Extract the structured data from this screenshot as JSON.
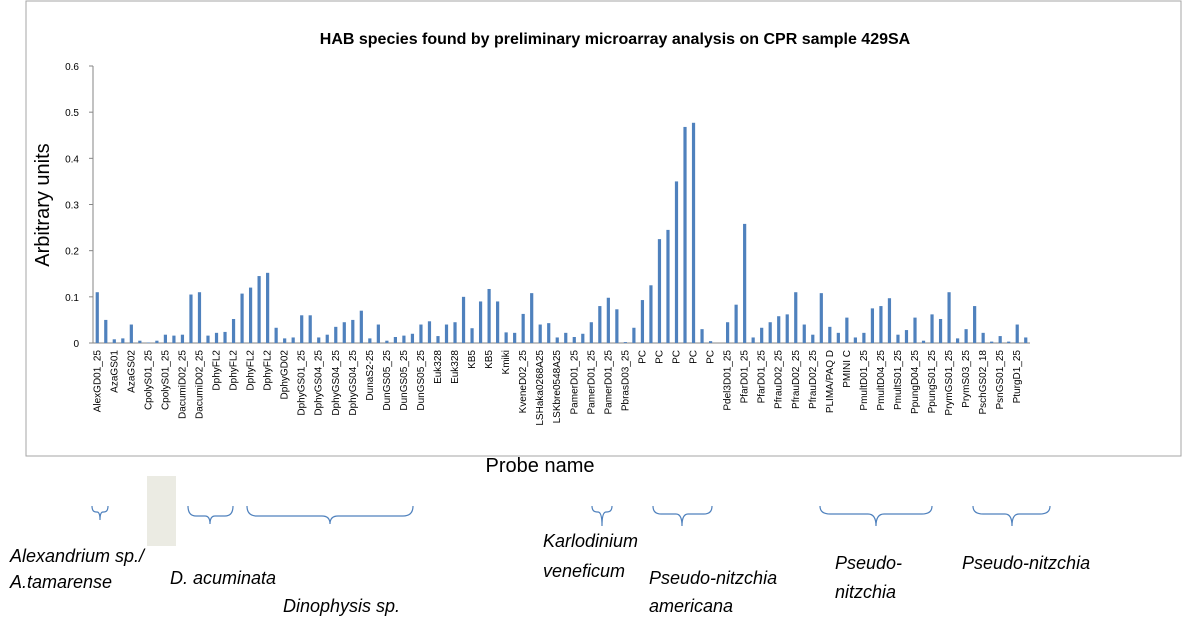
{
  "chart_data": {
    "type": "bar",
    "title": "HAB species found by preliminary microarray analysis on CPR sample 429SA",
    "x_label": "Probe name",
    "y_label": "Arbitrary units",
    "color": "#4f81bd",
    "grid": false,
    "ylim": [
      0,
      0.6
    ],
    "yticks": [
      0,
      0.1,
      0.2,
      0.3,
      0.4,
      0.5,
      0.6
    ],
    "categories": [
      "AlexGD01_25",
      null,
      "AzaGS01",
      null,
      "AzaGS02",
      null,
      "CpolyS01_25",
      null,
      "CpolyS01_25",
      null,
      "DacumiD02_25",
      null,
      "DacumiD02_25",
      null,
      "DphyFL2",
      null,
      "DphyFL2",
      null,
      "DphyFL2",
      null,
      "DphyFL2",
      null,
      "DphyGD02",
      null,
      "DphyGS01_25",
      null,
      "DphyGS04_25",
      null,
      "DphyGS04_25",
      null,
      "DphyGS04_25",
      null,
      "DunaS2-25",
      null,
      "DunGS05_25",
      null,
      "DunGS05_25",
      null,
      "DunGS05_25",
      null,
      "Euk328",
      null,
      "Euk328",
      null,
      "KB5",
      null,
      "KB5",
      null,
      "Kmiki",
      null,
      "KveneD02_25",
      null,
      "LSHaka0268A25",
      null,
      "LSKbre0548A25",
      null,
      "PamerD01_25",
      null,
      "PamerD01_25",
      null,
      "PamerD01_25",
      null,
      "PbrasD03_25",
      null,
      "PC",
      null,
      "PC",
      null,
      "PC",
      null,
      "PC",
      null,
      "PC",
      null,
      "Pdel3D01_25",
      null,
      "PfarD01_25",
      null,
      "PfarD01_25",
      null,
      "PfrauD02_25",
      null,
      "PfrauD02_25",
      null,
      "PfrauD02_25",
      null,
      "PLIMA/PAQ D",
      null,
      "PMINI C",
      null,
      "PmultD01_25",
      null,
      "PmultD04_25",
      null,
      "PmultS01_25",
      null,
      "PpungD04_25",
      null,
      "PpungS01_25",
      null,
      "PrymGS01_25",
      null,
      "PrymS03_25",
      null,
      "PschGS02_18",
      null,
      "PsnGS01_25",
      null,
      "PturgD1_25",
      null
    ],
    "values": [
      0.11,
      0.05,
      0.008,
      0.01,
      0.04,
      0.005,
      0.001,
      0.005,
      0.018,
      0.016,
      0.018,
      0.105,
      0.11,
      0.016,
      0.022,
      0.024,
      0.052,
      0.107,
      0.12,
      0.145,
      0.152,
      0.033,
      0.01,
      0.012,
      0.06,
      0.06,
      0.012,
      0.018,
      0.035,
      0.045,
      0.05,
      0.07,
      0.01,
      0.04,
      0.005,
      0.013,
      0.016,
      0.02,
      0.04,
      0.047,
      0.015,
      0.04,
      0.045,
      0.1,
      0.032,
      0.09,
      0.117,
      0.09,
      0.023,
      0.022,
      0.063,
      0.108,
      0.04,
      0.043,
      0.012,
      0.022,
      0.013,
      0.02,
      0.045,
      0.08,
      0.098,
      0.073,
      0.002,
      0.033,
      0.093,
      0.125,
      0.225,
      0.245,
      0.35,
      0.468,
      0.477,
      0.03,
      0.004,
      0,
      0.045,
      0.083,
      0.258,
      0.012,
      0.033,
      0.045,
      0.058,
      0.062,
      0.11,
      0.04,
      0.018,
      0.108,
      0.035,
      0.022,
      0.055,
      0.012,
      0.022,
      0.075,
      0.08,
      0.097,
      0.018,
      0.028,
      0.055,
      0.005,
      0.062,
      0.052,
      0.11,
      0.01,
      0.03,
      0.08,
      0.022,
      0.003,
      0.015,
      0.003,
      0.04,
      0.012
    ],
    "annotations": [
      "Alexandrium sp./",
      "A.tamarense",
      "D. acuminata",
      "Dinophysis sp.",
      "Karlodinium",
      "veneficum",
      "Pseudo-nitzchia",
      "americana",
      "Pseudo-",
      "nitzchia",
      "Pseudo-nitzchia"
    ]
  }
}
